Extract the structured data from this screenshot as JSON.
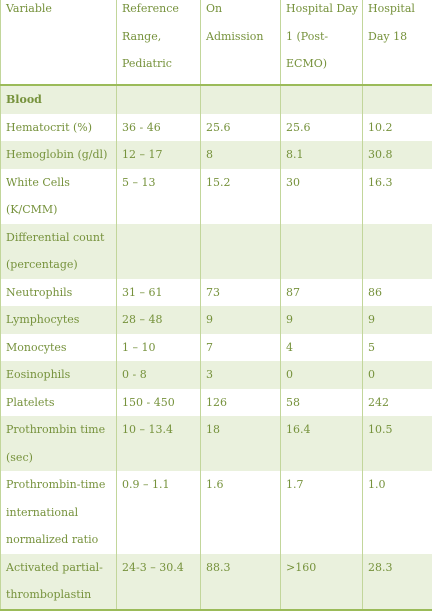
{
  "table": {
    "columns": [
      "Variable",
      "Reference Range, Pediatric",
      "On Admission",
      "Hospital Day 1 (Post-ECMO)",
      "Hospital Day 18"
    ],
    "header": {
      "variable": "Variable",
      "reference_range": "Reference Range, Pediatric",
      "on_admission": "On Admission",
      "day1": "Hospital Day 1 (Post-ECMO)",
      "day18": "Hospital Day 18"
    },
    "rows": [
      {
        "variable": "Blood",
        "range": "",
        "admission": "",
        "day1": "",
        "day18": ""
      },
      {
        "variable": "Hematocrit (%)",
        "range": "36 - 46",
        "admission": "25.6",
        "day1": "25.6",
        "day18": "10.2"
      },
      {
        "variable": "Hemoglobin (g/dl)",
        "range": "12 – 17",
        "admission": "8",
        "day1": "8.1",
        "day18": "30.8"
      },
      {
        "variable": "White Cells (K/CMM)",
        "range": "5 – 13",
        "admission": "15.2",
        "day1": "30",
        "day18": "16.3"
      },
      {
        "variable": "Differential count (percentage)",
        "range": "",
        "admission": "",
        "day1": "",
        "day18": ""
      },
      {
        "variable": "Neutrophils",
        "range": "31 – 61",
        "admission": "73",
        "day1": "87",
        "day18": "86"
      },
      {
        "variable": "Lymphocytes",
        "range": "28 – 48",
        "admission": "9",
        "day1": "9",
        "day18": "9"
      },
      {
        "variable": "Monocytes",
        "range": "1 – 10",
        "admission": "7",
        "day1": "4",
        "day18": "5"
      },
      {
        "variable": "Eosinophils",
        "range": "0 - 8",
        "admission": "3",
        "day1": "0",
        "day18": "0"
      },
      {
        "variable": "Platelets",
        "range": "150 - 450",
        "admission": "126",
        "day1": "58",
        "day18": "242"
      },
      {
        "variable": "Prothrombin time (sec)",
        "range": "10 – 13.4",
        "admission": "18",
        "day1": "16.4",
        "day18": "10.5"
      },
      {
        "variable": "Prothrombin-time international normalized ratio",
        "range": "0.9 – 1.1",
        "admission": "1.6",
        "day1": "1.7",
        "day18": "1.0"
      },
      {
        "variable": "Activated partial-thromboplastin",
        "range": "24-3 – 30.4",
        "admission": "88.3",
        "day1": ">160",
        "day18": "28.3"
      }
    ]
  }
}
